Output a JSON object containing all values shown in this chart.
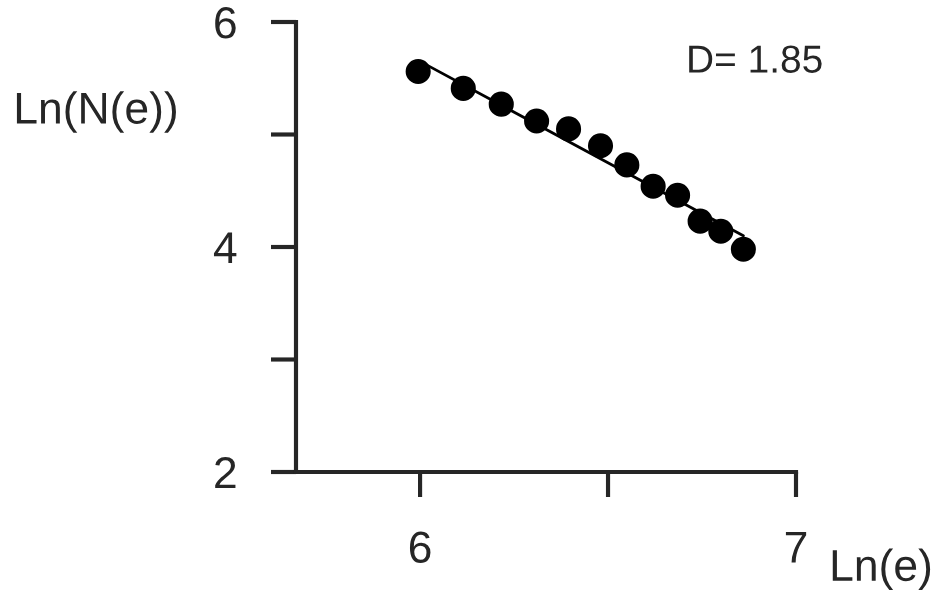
{
  "chart_data": {
    "type": "scatter",
    "xlabel": "Ln(e)",
    "ylabel": "Ln(N(e))",
    "annotations": [
      "D= 1.85"
    ],
    "xlim": [
      5.67,
      7
    ],
    "ylim": [
      2,
      6
    ],
    "xticks": [
      6,
      {
        "value": 6.5,
        "label": null
      },
      7
    ],
    "yticks": [
      2,
      {
        "value": 3,
        "label": null
      },
      4,
      {
        "value": 5,
        "label": null
      },
      6
    ],
    "grid": false,
    "series": [
      {
        "marker": "circle",
        "color": "#000000",
        "x": [
          5.995,
          6.115,
          6.216,
          6.31,
          6.395,
          6.48,
          6.55,
          6.62,
          6.685,
          6.745,
          6.8,
          6.86
        ],
        "values": [
          5.56,
          5.41,
          5.27,
          5.12,
          5.05,
          4.9,
          4.73,
          4.54,
          4.46,
          4.23,
          4.14,
          3.98
        ]
      },
      {
        "type": "line",
        "color": "#000000",
        "x": [
          6.0,
          6.86
        ],
        "values": [
          5.65,
          4.1
        ]
      }
    ]
  }
}
